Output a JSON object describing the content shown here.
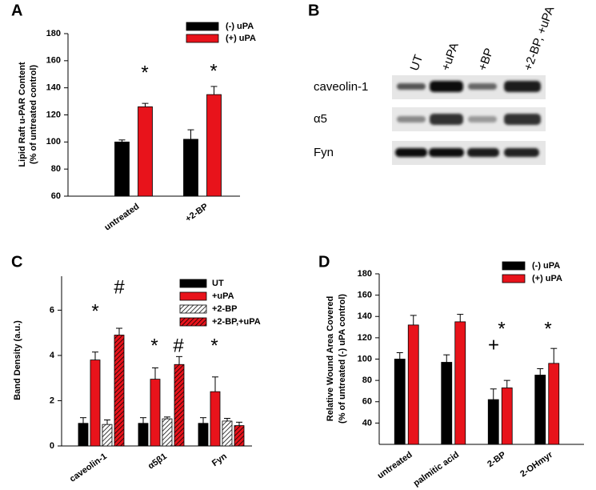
{
  "chart_data": [
    {
      "type": "bar",
      "panel": "A",
      "y_label": [
        "Lipid Raft u-PAR Content",
        "(% of untreated control)"
      ],
      "categories": [
        "untreated",
        "+2-BP"
      ],
      "series": [
        {
          "name": "(-) uPA",
          "color": "#000000",
          "hatch": false,
          "values": [
            100,
            102
          ],
          "errors": [
            1.5,
            7
          ]
        },
        {
          "name": "(+) uPA",
          "color": "#e8131b",
          "hatch": false,
          "values": [
            126,
            135
          ],
          "errors": [
            2.5,
            6
          ]
        }
      ],
      "ylim": [
        60,
        180
      ],
      "yticks": [
        60,
        80,
        100,
        120,
        140,
        160,
        180
      ],
      "annotations": [
        "*",
        "*"
      ]
    },
    {
      "type": "bar",
      "panel": "C",
      "y_label": [
        "Band Density (a.u.)"
      ],
      "categories": [
        "caveolin-1",
        "α5β1",
        "Fyn"
      ],
      "series": [
        {
          "name": "UT",
          "color": "#000000",
          "hatch": false,
          "values": [
            1.0,
            1.0,
            1.0
          ],
          "errors": [
            0.25,
            0.25,
            0.25
          ]
        },
        {
          "name": "+uPA",
          "color": "#e8131b",
          "hatch": false,
          "values": [
            3.8,
            2.95,
            2.4
          ],
          "errors": [
            0.35,
            0.5,
            0.65
          ]
        },
        {
          "name": "+2-BP",
          "color": "#ffffff",
          "hatch": true,
          "values": [
            0.95,
            1.2,
            1.1
          ],
          "errors": [
            0.2,
            0.08,
            0.12
          ]
        },
        {
          "name": "+2-BP,+uPA",
          "color": "#e8131b",
          "hatch": true,
          "values": [
            4.9,
            3.6,
            0.9
          ],
          "errors": [
            0.3,
            0.35,
            0.15
          ]
        }
      ],
      "ylim": [
        0,
        7.5
      ],
      "yticks": [
        0,
        2,
        4,
        6
      ],
      "annotations": [
        "*",
        "#",
        "*",
        "#",
        "*"
      ]
    },
    {
      "type": "bar",
      "panel": "D",
      "y_label": [
        "Relative Wound Area Covered",
        "(% of untreated (-) uPA control)"
      ],
      "categories": [
        "untreated",
        "palmitic acid",
        "2-BP",
        "2-OHmyr"
      ],
      "series": [
        {
          "name": "(-) uPA",
          "color": "#000000",
          "hatch": false,
          "values": [
            100,
            97,
            62,
            85
          ],
          "errors": [
            6,
            7,
            10,
            6
          ]
        },
        {
          "name": "(+) uPA",
          "color": "#e8131b",
          "hatch": false,
          "values": [
            132,
            135,
            73,
            96
          ],
          "errors": [
            9,
            7,
            7,
            14
          ]
        }
      ],
      "ylim": [
        20,
        180
      ],
      "yticks": [
        40,
        60,
        80,
        100,
        120,
        140,
        160,
        180
      ],
      "annotations": [
        "*",
        "+",
        "*"
      ]
    }
  ],
  "blot": {
    "panel": "B",
    "lanes": [
      "UT",
      "+uPA",
      "+BP",
      "+2-BP, +uPA"
    ],
    "rows": [
      "caveolin-1",
      "α5",
      "Fyn"
    ]
  }
}
